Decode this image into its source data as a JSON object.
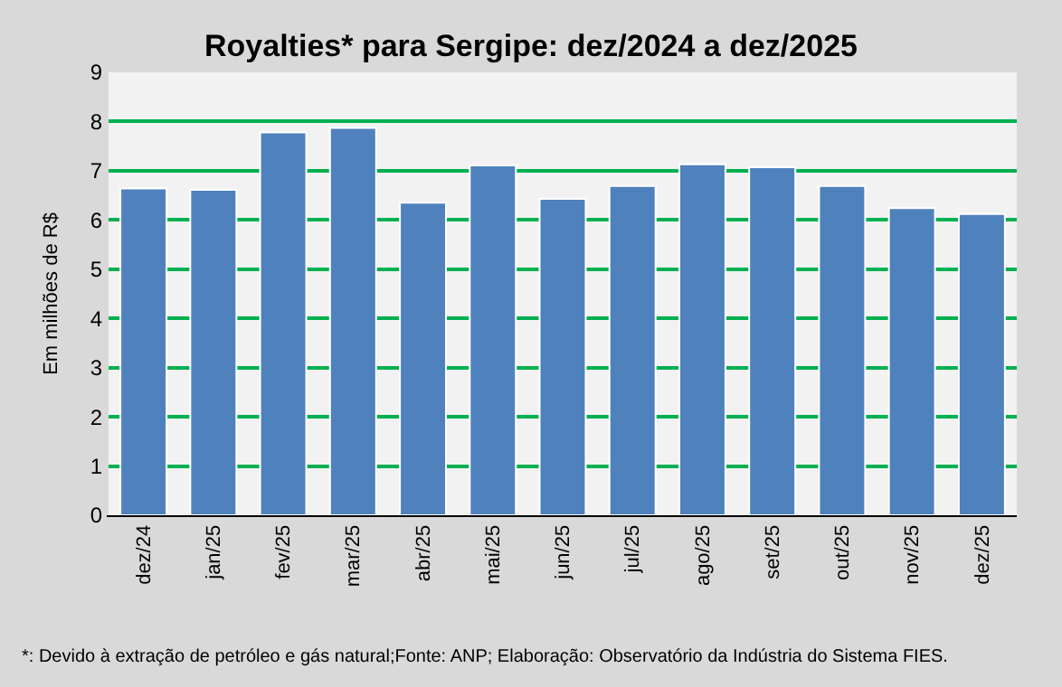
{
  "chart_data": {
    "type": "bar",
    "title": "Royalties* para Sergipe: dez/2024 a dez/2025",
    "ylabel": "Em milhões de R$",
    "categories": [
      "dez/24",
      "jan/25",
      "fev/25",
      "mar/25",
      "abr/25",
      "mai/25",
      "jun/25",
      "jul/25",
      "ago/25",
      "set/25",
      "out/25",
      "nov/25",
      "dez/25"
    ],
    "values": [
      6.64,
      6.61,
      7.78,
      7.87,
      6.35,
      7.11,
      6.43,
      6.69,
      7.13,
      7.07,
      6.69,
      6.24,
      6.12
    ],
    "color": "#4f81bd",
    "ylim": [
      0,
      9
    ],
    "yticks": [
      0,
      1,
      2,
      3,
      4,
      5,
      6,
      7,
      8,
      9
    ],
    "grid": "y",
    "annotations": [
      "*: Devido à extração de petróleo e gás natural;Fonte: ANP; Elaboração: Observatório da Indústria do Sistema FIES."
    ]
  }
}
